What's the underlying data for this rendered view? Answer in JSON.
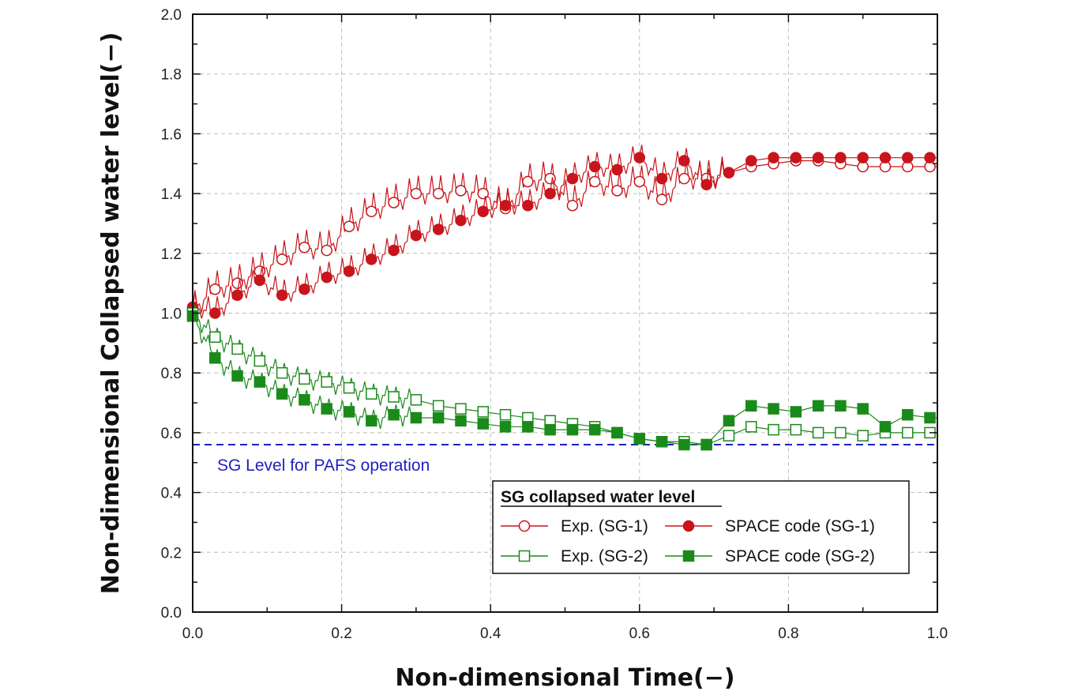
{
  "chart_data": {
    "type": "line",
    "title": "",
    "xlabel": "Non-dimensional Time(−)",
    "ylabel": "Non-dimensional Collapsed water level(−)",
    "xlim": [
      0.0,
      1.0
    ],
    "ylim": [
      0.0,
      2.0
    ],
    "x_ticks": [
      0.0,
      0.2,
      0.4,
      0.6,
      0.8,
      1.0
    ],
    "x_tick_labels": [
      "0.0",
      "0.2",
      "0.4",
      "0.6",
      "0.8",
      "1.0"
    ],
    "y_ticks": [
      0.0,
      0.2,
      0.4,
      0.6,
      0.8,
      1.0,
      1.2,
      1.4,
      1.6,
      1.8,
      2.0
    ],
    "y_tick_labels": [
      "0.0",
      "0.2",
      "0.4",
      "0.6",
      "0.8",
      "1.0",
      "1.2",
      "1.4",
      "1.6",
      "1.8",
      "2.0"
    ],
    "grid": true,
    "legend": {
      "title": "SG collapsed water level",
      "placement": "bottom-right"
    },
    "reference_line": {
      "label": "SG Level for PAFS operation",
      "y": 0.56,
      "color": "#1f1fbf",
      "style": "dashed"
    },
    "series": [
      {
        "name": "Exp. (SG-1)",
        "color": "#c8151b",
        "marker": "open-circle",
        "points": [
          [
            0.0,
            1.01
          ],
          [
            0.03,
            1.08
          ],
          [
            0.06,
            1.1
          ],
          [
            0.09,
            1.14
          ],
          [
            0.12,
            1.18
          ],
          [
            0.15,
            1.22
          ],
          [
            0.18,
            1.21
          ],
          [
            0.21,
            1.29
          ],
          [
            0.24,
            1.34
          ],
          [
            0.27,
            1.37
          ],
          [
            0.3,
            1.4
          ],
          [
            0.33,
            1.4
          ],
          [
            0.36,
            1.41
          ],
          [
            0.39,
            1.4
          ],
          [
            0.42,
            1.35
          ],
          [
            0.45,
            1.44
          ],
          [
            0.48,
            1.45
          ],
          [
            0.51,
            1.36
          ],
          [
            0.54,
            1.44
          ],
          [
            0.57,
            1.41
          ],
          [
            0.6,
            1.44
          ],
          [
            0.63,
            1.38
          ],
          [
            0.66,
            1.45
          ],
          [
            0.69,
            1.45
          ],
          [
            0.72,
            1.47
          ],
          [
            0.75,
            1.49
          ],
          [
            0.78,
            1.5
          ],
          [
            0.81,
            1.51
          ],
          [
            0.84,
            1.51
          ],
          [
            0.87,
            1.5
          ],
          [
            0.9,
            1.49
          ],
          [
            0.93,
            1.49
          ],
          [
            0.96,
            1.49
          ],
          [
            0.99,
            1.49
          ]
        ]
      },
      {
        "name": "SPACE code (SG-1)",
        "color": "#c8151b",
        "marker": "filled-circle",
        "points": [
          [
            0.0,
            1.02
          ],
          [
            0.03,
            1.0
          ],
          [
            0.06,
            1.06
          ],
          [
            0.09,
            1.11
          ],
          [
            0.12,
            1.06
          ],
          [
            0.15,
            1.08
          ],
          [
            0.18,
            1.12
          ],
          [
            0.21,
            1.14
          ],
          [
            0.24,
            1.18
          ],
          [
            0.27,
            1.21
          ],
          [
            0.3,
            1.26
          ],
          [
            0.33,
            1.28
          ],
          [
            0.36,
            1.31
          ],
          [
            0.39,
            1.34
          ],
          [
            0.42,
            1.36
          ],
          [
            0.45,
            1.36
          ],
          [
            0.48,
            1.4
          ],
          [
            0.51,
            1.45
          ],
          [
            0.54,
            1.49
          ],
          [
            0.57,
            1.48
          ],
          [
            0.6,
            1.52
          ],
          [
            0.63,
            1.45
          ],
          [
            0.66,
            1.51
          ],
          [
            0.69,
            1.43
          ],
          [
            0.72,
            1.47
          ],
          [
            0.75,
            1.51
          ],
          [
            0.78,
            1.52
          ],
          [
            0.81,
            1.52
          ],
          [
            0.84,
            1.52
          ],
          [
            0.87,
            1.52
          ],
          [
            0.9,
            1.52
          ],
          [
            0.93,
            1.52
          ],
          [
            0.96,
            1.52
          ],
          [
            0.99,
            1.52
          ]
        ]
      },
      {
        "name": "Exp. (SG-2)",
        "color": "#1a8a1a",
        "marker": "open-square",
        "points": [
          [
            0.0,
            1.0
          ],
          [
            0.03,
            0.92
          ],
          [
            0.06,
            0.88
          ],
          [
            0.09,
            0.84
          ],
          [
            0.12,
            0.8
          ],
          [
            0.15,
            0.78
          ],
          [
            0.18,
            0.77
          ],
          [
            0.21,
            0.75
          ],
          [
            0.24,
            0.73
          ],
          [
            0.27,
            0.72
          ],
          [
            0.3,
            0.71
          ],
          [
            0.33,
            0.69
          ],
          [
            0.36,
            0.68
          ],
          [
            0.39,
            0.67
          ],
          [
            0.42,
            0.66
          ],
          [
            0.45,
            0.65
          ],
          [
            0.48,
            0.64
          ],
          [
            0.51,
            0.63
          ],
          [
            0.54,
            0.62
          ],
          [
            0.57,
            0.6
          ],
          [
            0.6,
            0.58
          ],
          [
            0.63,
            0.57
          ],
          [
            0.66,
            0.57
          ],
          [
            0.69,
            0.56
          ],
          [
            0.72,
            0.59
          ],
          [
            0.75,
            0.62
          ],
          [
            0.78,
            0.61
          ],
          [
            0.81,
            0.61
          ],
          [
            0.84,
            0.6
          ],
          [
            0.87,
            0.6
          ],
          [
            0.9,
            0.59
          ],
          [
            0.93,
            0.6
          ],
          [
            0.96,
            0.6
          ],
          [
            0.99,
            0.6
          ]
        ]
      },
      {
        "name": "SPACE code (SG-2)",
        "color": "#1a8a1a",
        "marker": "filled-square",
        "points": [
          [
            0.0,
            0.99
          ],
          [
            0.03,
            0.85
          ],
          [
            0.06,
            0.79
          ],
          [
            0.09,
            0.77
          ],
          [
            0.12,
            0.73
          ],
          [
            0.15,
            0.71
          ],
          [
            0.18,
            0.68
          ],
          [
            0.21,
            0.67
          ],
          [
            0.24,
            0.64
          ],
          [
            0.27,
            0.66
          ],
          [
            0.3,
            0.65
          ],
          [
            0.33,
            0.65
          ],
          [
            0.36,
            0.64
          ],
          [
            0.39,
            0.63
          ],
          [
            0.42,
            0.62
          ],
          [
            0.45,
            0.62
          ],
          [
            0.48,
            0.61
          ],
          [
            0.51,
            0.61
          ],
          [
            0.54,
            0.61
          ],
          [
            0.57,
            0.6
          ],
          [
            0.6,
            0.58
          ],
          [
            0.63,
            0.57
          ],
          [
            0.66,
            0.56
          ],
          [
            0.69,
            0.56
          ],
          [
            0.72,
            0.64
          ],
          [
            0.75,
            0.69
          ],
          [
            0.78,
            0.68
          ],
          [
            0.81,
            0.67
          ],
          [
            0.84,
            0.69
          ],
          [
            0.87,
            0.69
          ],
          [
            0.9,
            0.68
          ],
          [
            0.93,
            0.62
          ],
          [
            0.96,
            0.66
          ],
          [
            0.99,
            0.65
          ]
        ]
      }
    ]
  }
}
